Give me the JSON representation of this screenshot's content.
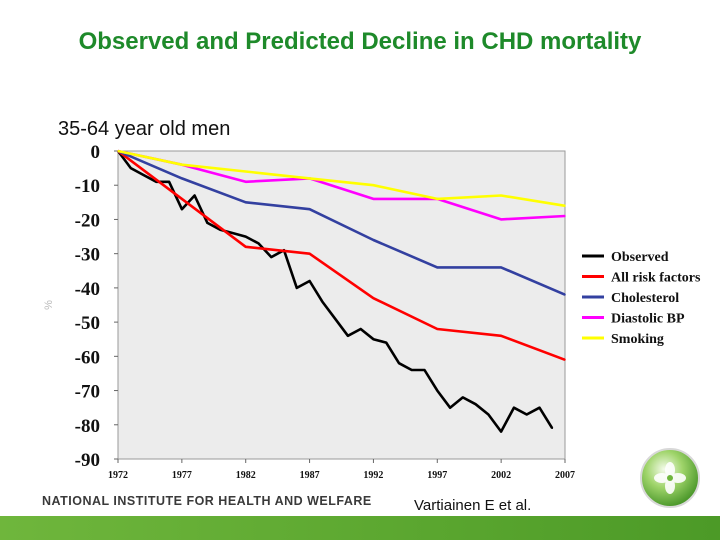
{
  "slide": {
    "title": "Observed and Predicted Decline in CHD mortality",
    "subtitle": "35-64 year old men",
    "footer_org": "NATIONAL INSTITUTE FOR HEALTH AND WELFARE",
    "citation": "Vartiainen E et al."
  },
  "colors": {
    "title": "#1e8a2a",
    "observed": "#000000",
    "all_risk_factors": "#ff0000",
    "cholesterol": "#3340a0",
    "diastolic_bp": "#ff00ff",
    "smoking": "#ffff00",
    "plot_bg": "#ececec",
    "band": "#5aa62f"
  },
  "chart_data": {
    "type": "line",
    "title": "",
    "xlabel": "",
    "ylabel": "%",
    "xlim": [
      1972,
      2007
    ],
    "ylim": [
      -90,
      0
    ],
    "xticks": [
      "1972",
      "1977",
      "1982",
      "1987",
      "1992",
      "1997",
      "2002",
      "2007"
    ],
    "yticks": [
      "0",
      "-10",
      "-20",
      "-30",
      "-40",
      "-50",
      "-60",
      "-70",
      "-80",
      "-90"
    ],
    "legend_position": "right",
    "series": [
      {
        "name": "Observed",
        "color": "#000000",
        "x": [
          1972,
          1973,
          1974,
          1975,
          1976,
          1977,
          1978,
          1979,
          1980,
          1981,
          1982,
          1983,
          1984,
          1985,
          1986,
          1987,
          1988,
          1989,
          1990,
          1991,
          1992,
          1993,
          1994,
          1995,
          1996,
          1997,
          1998,
          1999,
          2000,
          2001,
          2002,
          2003,
          2004,
          2005,
          2006
        ],
        "values": [
          0,
          -5,
          -7,
          -9,
          -9,
          -17,
          -13,
          -21,
          -23,
          -24,
          -25,
          -27,
          -31,
          -29,
          -40,
          -38,
          -44,
          -49,
          -54,
          -52,
          -55,
          -56,
          -62,
          -64,
          -64,
          -70,
          -75,
          -72,
          -74,
          -77,
          -82,
          -75,
          -77,
          -75,
          -81
        ]
      },
      {
        "name": "All risk factors",
        "color": "#ff0000",
        "x": [
          1972,
          1977,
          1982,
          1987,
          1992,
          1997,
          2002,
          2007
        ],
        "values": [
          0,
          -14,
          -28,
          -30,
          -43,
          -52,
          -54,
          -61
        ]
      },
      {
        "name": "Cholesterol",
        "color": "#3340a0",
        "x": [
          1972,
          1977,
          1982,
          1987,
          1992,
          1997,
          2002,
          2007
        ],
        "values": [
          0,
          -8,
          -15,
          -17,
          -26,
          -34,
          -34,
          -42
        ]
      },
      {
        "name": "Diastolic BP",
        "color": "#ff00ff",
        "x": [
          1972,
          1977,
          1982,
          1987,
          1992,
          1997,
          2002,
          2007
        ],
        "values": [
          0,
          -4,
          -9,
          -8,
          -14,
          -14,
          -20,
          -19
        ]
      },
      {
        "name": "Smoking",
        "color": "#ffff00",
        "x": [
          1972,
          1977,
          1982,
          1987,
          1992,
          1997,
          2002,
          2007
        ],
        "values": [
          0,
          -4,
          -6,
          -8,
          -10,
          -14,
          -13,
          -16
        ]
      }
    ]
  }
}
